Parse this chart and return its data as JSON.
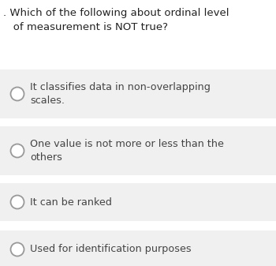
{
  "question_line1": ". Which of the following about ordinal level",
  "question_line2": "   of measurement is NOT true?",
  "options": [
    "It classifies data in non-overlapping\nscales.",
    "One value is not more or less than the\nothers",
    "It can be ranked",
    "Used for identification purposes"
  ],
  "bg_color": "#ffffff",
  "option_bg_color": "#f0f0f0",
  "question_color": "#222222",
  "option_text_color": "#444444",
  "circle_edge_color": "#999999",
  "circle_face_color": "#ffffff",
  "font_size_question": 9.5,
  "font_size_option": 9.2,
  "figsize": [
    3.5,
    3.37
  ],
  "dpi": 100
}
